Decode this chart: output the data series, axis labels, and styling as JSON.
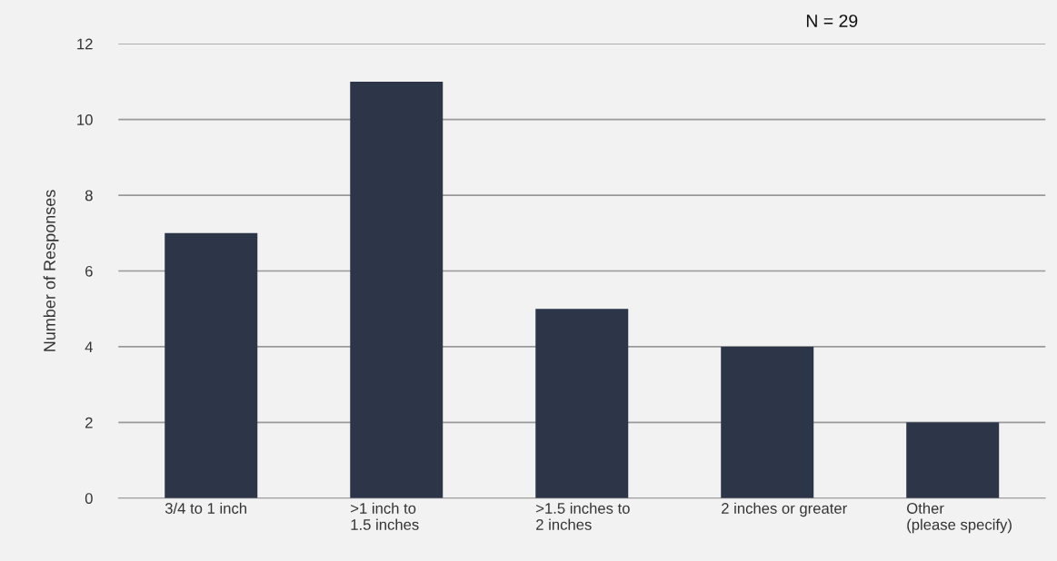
{
  "chart_data": {
    "type": "bar",
    "ylabel": "Number of Responses",
    "categories": [
      "3/4 to 1 inch",
      ">1 inch to\n1.5 inches",
      ">1.5 inches to\n2 inches",
      "2 inches or greater",
      "Other\n(please specify)"
    ],
    "values": [
      7,
      11,
      5,
      4,
      2
    ],
    "color": "#2d3648",
    "ylim": [
      0,
      12
    ],
    "yticks": [
      0,
      2,
      4,
      6,
      8,
      10,
      12
    ],
    "grid": "y",
    "annotations": [
      "N = 29"
    ]
  }
}
